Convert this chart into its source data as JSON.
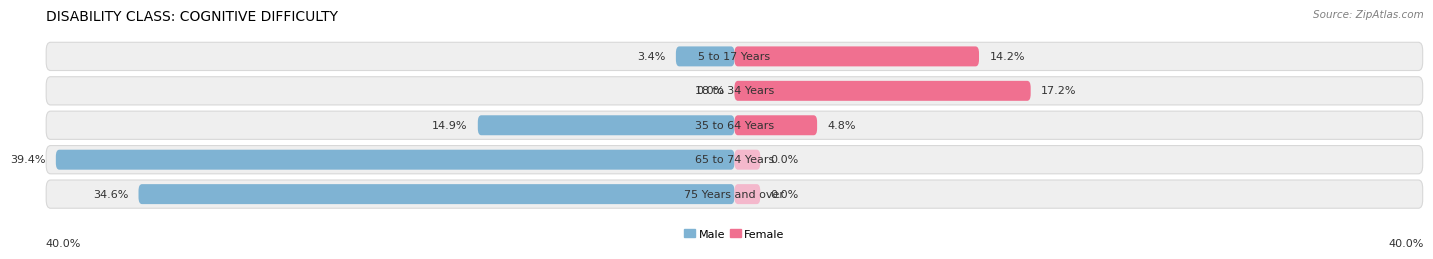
{
  "title": "DISABILITY CLASS: COGNITIVE DIFFICULTY",
  "source": "Source: ZipAtlas.com",
  "categories": [
    "5 to 17 Years",
    "18 to 34 Years",
    "35 to 64 Years",
    "65 to 74 Years",
    "75 Years and over"
  ],
  "male_values": [
    3.4,
    0.0,
    14.9,
    39.4,
    34.6
  ],
  "female_values": [
    14.2,
    17.2,
    4.8,
    0.0,
    0.0
  ],
  "male_color": "#7fb3d3",
  "female_color": "#f07090",
  "female_stub_color": "#f4b8cc",
  "axis_max": 40.0,
  "axis_label_left": "40.0%",
  "axis_label_right": "40.0%",
  "bar_height": 0.58,
  "row_bg_color": "#efefef",
  "row_bg_edge_color": "#d8d8d8",
  "background_color": "#ffffff",
  "title_fontsize": 10,
  "label_fontsize": 8,
  "source_fontsize": 7.5,
  "tick_fontsize": 8,
  "stub_size": 1.5
}
